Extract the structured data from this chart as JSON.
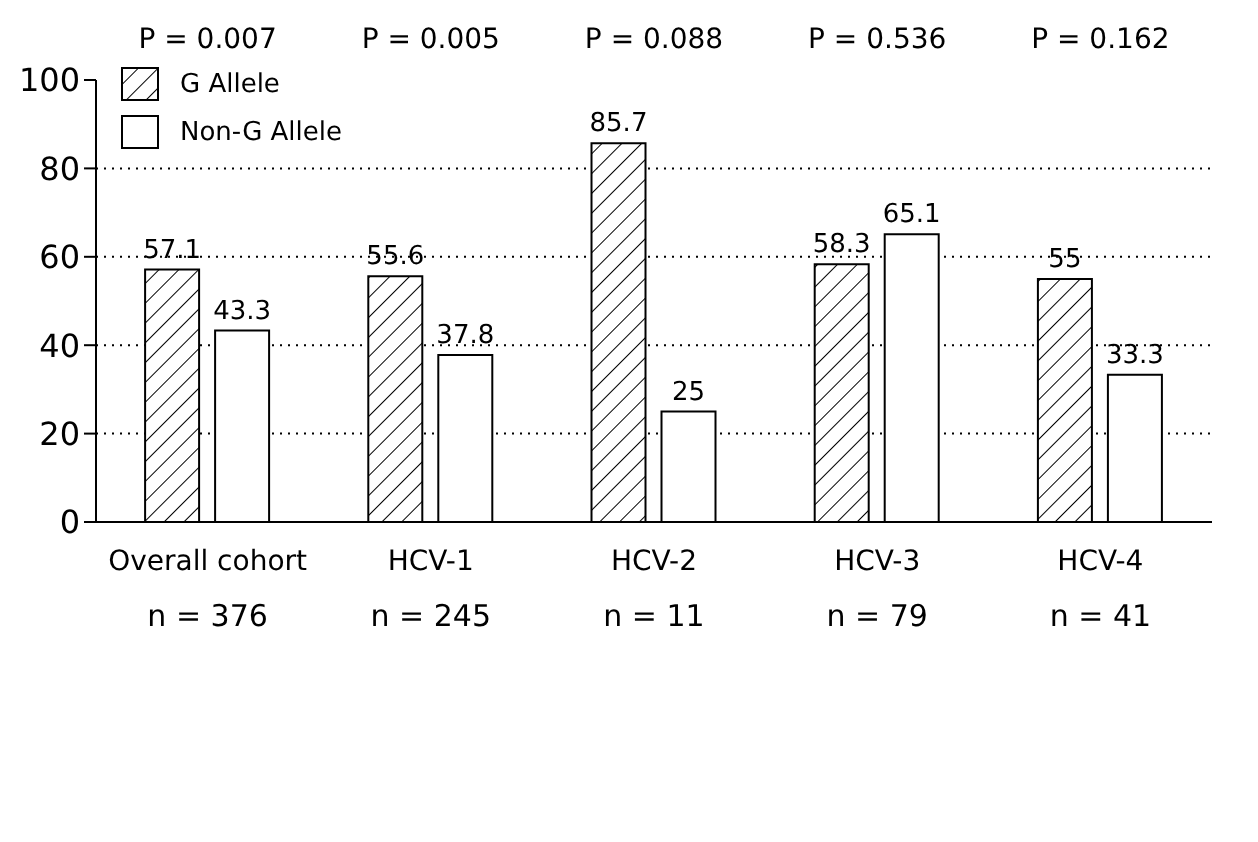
{
  "chart_data": {
    "type": "bar",
    "categories": [
      "Overall cohort",
      "HCV-1",
      "HCV-2",
      "HCV-3",
      "HCV-4"
    ],
    "series": [
      {
        "name": "G Allele",
        "color": "#000000",
        "values": [
          57.1,
          55.6,
          85.7,
          58.3,
          55
        ]
      },
      {
        "name": "Non-G Allele",
        "color": "#ffffff",
        "values": [
          43.3,
          37.8,
          25,
          65.1,
          33.3
        ]
      }
    ],
    "ylim": [
      0,
      100
    ],
    "yticks": [
      0,
      20,
      40,
      60,
      80,
      100
    ],
    "grid": "y",
    "legend": "top left",
    "data_labels": true,
    "annotations": [
      "P = 0.007",
      "P = 0.005",
      "P = 0.088",
      "P = 0.536",
      "P = 0.162",
      "n = 376",
      "n = 245",
      "n = 11",
      "n = 79",
      "n = 41"
    ]
  }
}
